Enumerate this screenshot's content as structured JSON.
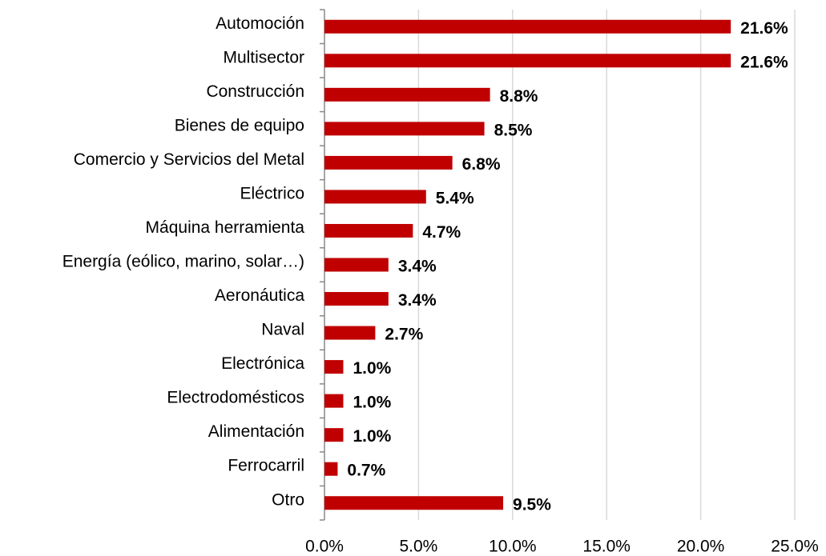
{
  "chart_data": {
    "type": "bar",
    "orientation": "horizontal",
    "categories": [
      "Automoción",
      "Multisector",
      "Construcción",
      "Bienes de equipo",
      "Comercio y Servicios del Metal",
      "Eléctrico",
      "Máquina herramienta",
      "Energía (eólico, marino, solar…)",
      "Aeronáutica",
      "Naval",
      "Electrónica",
      "Electrodomésticos",
      "Alimentación",
      "Ferrocarril",
      "Otro"
    ],
    "values": [
      21.6,
      21.6,
      8.8,
      8.5,
      6.8,
      5.4,
      4.7,
      3.4,
      3.4,
      2.7,
      1.0,
      1.0,
      1.0,
      0.7,
      9.5
    ],
    "value_labels": [
      "21.6%",
      "21.6%",
      "8.8%",
      "8.5%",
      "6.8%",
      "5.4%",
      "4.7%",
      "3.4%",
      "3.4%",
      "2.7%",
      "1.0%",
      "1.0%",
      "1.0%",
      "0.7%",
      "9.5%"
    ],
    "color": "#c00000",
    "xlim": [
      0,
      25
    ],
    "xticks": [
      {
        "value": 0,
        "label": "0.0%"
      },
      {
        "value": 5,
        "label": "5.0%"
      },
      {
        "value": 10,
        "label": "10.0%"
      },
      {
        "value": 15,
        "label": "15.0%"
      },
      {
        "value": 20,
        "label": "20.0%"
      },
      {
        "value": 25,
        "label": "25.0%"
      }
    ],
    "grid": true
  }
}
